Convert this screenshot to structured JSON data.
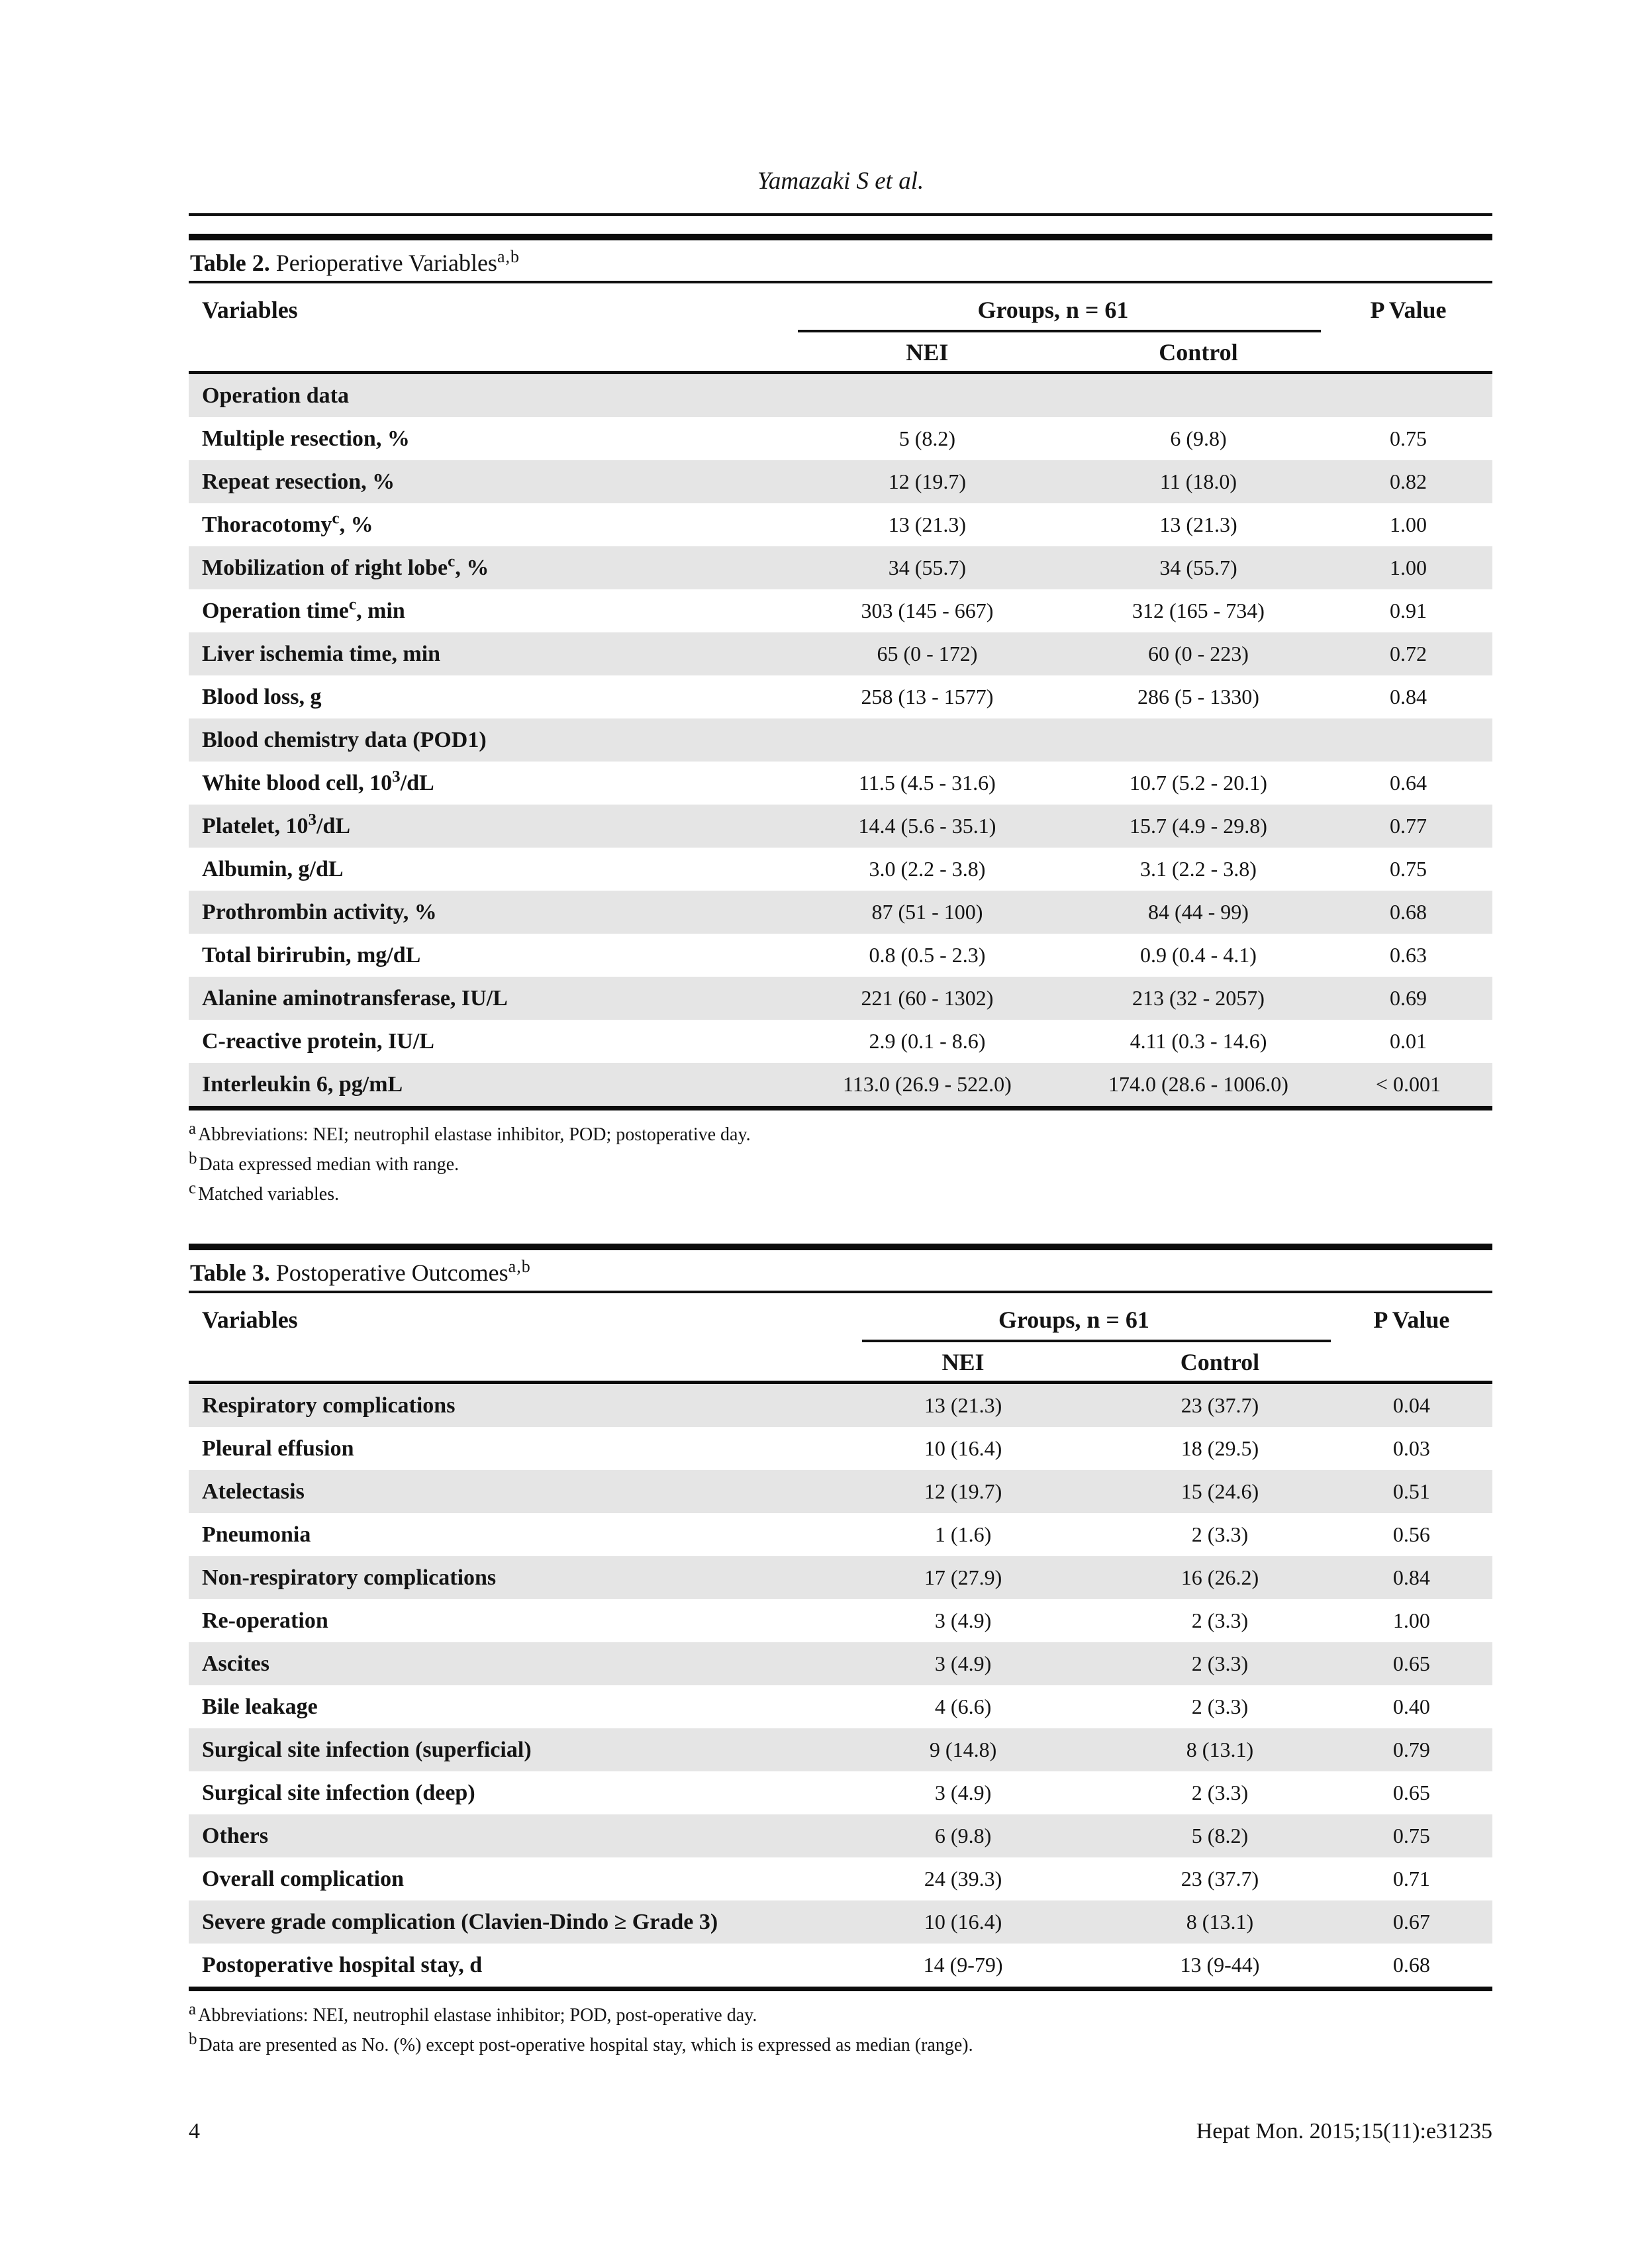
{
  "page": {
    "running_head": "Yamazaki S et al.",
    "page_number": "4",
    "journal_ref": "Hepat Mon. 2015;15(11):e31235"
  },
  "colors": {
    "row_shade": "#e5e5e5",
    "rule": "#0c0c0c",
    "text": "#141414"
  },
  "table2": {
    "caption_label": "Table 2.",
    "caption_title": "Perioperative Variables",
    "caption_sup": "a,b",
    "columns": {
      "variables": "Variables",
      "groups": "Groups, n = 61",
      "p_value": "P Value",
      "nei": "NEI",
      "control": "Control"
    },
    "rows": [
      {
        "type": "section",
        "label": "Operation data"
      },
      {
        "label": "Multiple resection, %",
        "nei": "5 (8.2)",
        "control": "6 (9.8)",
        "p": "0.75"
      },
      {
        "label": "Repeat resection, %",
        "nei": "12 (19.7)",
        "control": "11 (18.0)",
        "p": "0.82"
      },
      {
        "label": "Thoracotomy^c^, %",
        "nei": "13 (21.3)",
        "control": "13 (21.3)",
        "p": "1.00"
      },
      {
        "label": "Mobilization of right lobe^c^, %",
        "nei": "34 (55.7)",
        "control": "34 (55.7)",
        "p": "1.00"
      },
      {
        "label": "Operation time^c^, min",
        "nei": "303 (145 - 667)",
        "control": "312 (165 - 734)",
        "p": "0.91"
      },
      {
        "label": "Liver ischemia time, min",
        "nei": "65 (0 - 172)",
        "control": "60 (0 - 223)",
        "p": "0.72"
      },
      {
        "label": "Blood loss, g",
        "nei": "258 (13 - 1577)",
        "control": "286 (5 - 1330)",
        "p": "0.84"
      },
      {
        "type": "section",
        "label": "Blood chemistry data (POD1)"
      },
      {
        "label": "White blood cell, 10^3^/dL",
        "nei": "11.5 (4.5 - 31.6)",
        "control": "10.7 (5.2 - 20.1)",
        "p": "0.64"
      },
      {
        "label": "Platelet, 10^3^/dL",
        "nei": "14.4 (5.6 - 35.1)",
        "control": "15.7 (4.9 - 29.8)",
        "p": "0.77"
      },
      {
        "label": "Albumin, g/dL",
        "nei": "3.0 (2.2 - 3.8)",
        "control": "3.1 (2.2 - 3.8)",
        "p": "0.75"
      },
      {
        "label": "Prothrombin activity, %",
        "nei": "87 (51 - 100)",
        "control": "84 (44 - 99)",
        "p": "0.68"
      },
      {
        "label": "Total birirubin, mg/dL",
        "nei": "0.8 (0.5 - 2.3)",
        "control": "0.9 (0.4 - 4.1)",
        "p": "0.63"
      },
      {
        "label": "Alanine aminotransferase, IU/L",
        "nei": "221 (60 - 1302)",
        "control": "213 (32 - 2057)",
        "p": "0.69"
      },
      {
        "label": "C-reactive protein, IU/L",
        "nei": "2.9 (0.1 - 8.6)",
        "control": "4.11 (0.3 - 14.6)",
        "p": "0.01"
      },
      {
        "label": "Interleukin 6, pg/mL",
        "nei": "113.0 (26.9 - 522.0)",
        "control": "174.0 (28.6 - 1006.0)",
        "p": "< 0.001"
      }
    ],
    "footnotes": [
      {
        "sup": "a",
        "text": "Abbreviations: NEI; neutrophil elastase inhibitor, POD; postoperative day."
      },
      {
        "sup": "b",
        "text": "Data expressed median with range."
      },
      {
        "sup": "c",
        "text": "Matched variables."
      }
    ]
  },
  "table3": {
    "caption_label": "Table 3.",
    "caption_title": "Postoperative Outcomes",
    "caption_sup": "a,b",
    "columns": {
      "variables": "Variables",
      "groups": "Groups, n = 61",
      "p_value": "P Value",
      "nei": "NEI",
      "control": "Control"
    },
    "rows": [
      {
        "label": "Respiratory complications",
        "nei": "13 (21.3)",
        "control": "23 (37.7)",
        "p": "0.04"
      },
      {
        "label": "Pleural effusion",
        "nei": "10 (16.4)",
        "control": "18 (29.5)",
        "p": "0.03"
      },
      {
        "label": "Atelectasis",
        "nei": "12 (19.7)",
        "control": "15 (24.6)",
        "p": "0.51"
      },
      {
        "label": "Pneumonia",
        "nei": "1 (1.6)",
        "control": "2 (3.3)",
        "p": "0.56"
      },
      {
        "label": "Non-respiratory complications",
        "nei": "17 (27.9)",
        "control": "16 (26.2)",
        "p": "0.84"
      },
      {
        "label": "Re-operation",
        "nei": "3 (4.9)",
        "control": "2 (3.3)",
        "p": "1.00"
      },
      {
        "label": "Ascites",
        "nei": "3 (4.9)",
        "control": "2 (3.3)",
        "p": "0.65"
      },
      {
        "label": "Bile leakage",
        "nei": "4 (6.6)",
        "control": "2 (3.3)",
        "p": "0.40"
      },
      {
        "label": "Surgical site infection (superficial)",
        "nei": "9 (14.8)",
        "control": "8 (13.1)",
        "p": "0.79"
      },
      {
        "label": "Surgical site infection (deep)",
        "nei": "3 (4.9)",
        "control": "2 (3.3)",
        "p": "0.65"
      },
      {
        "label": "Others",
        "nei": "6 (9.8)",
        "control": "5 (8.2)",
        "p": "0.75"
      },
      {
        "label": "Overall complication",
        "nei": "24 (39.3)",
        "control": "23 (37.7)",
        "p": "0.71"
      },
      {
        "label": "Severe grade complication (Clavien-Dindo  ≥ Grade 3)",
        "nei": "10 (16.4)",
        "control": "8 (13.1)",
        "p": "0.67"
      },
      {
        "label": "Postoperative hospital stay, d",
        "nei": "14 (9-79)",
        "control": "13 (9-44)",
        "p": "0.68"
      }
    ],
    "footnotes": [
      {
        "sup": "a",
        "text": "Abbreviations: NEI, neutrophil elastase inhibitor; POD, post-operative day."
      },
      {
        "sup": "b",
        "text": "Data are presented as No. (%) except post-operative hospital stay, which is expressed as median (range)."
      }
    ]
  }
}
